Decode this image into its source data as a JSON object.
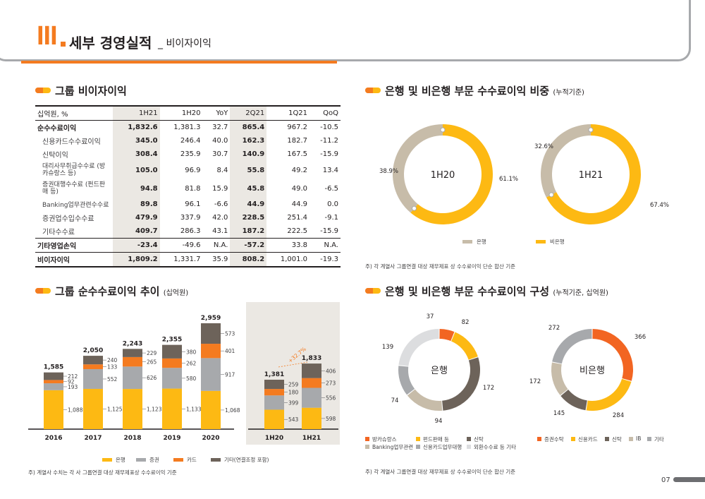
{
  "header": {
    "roman": "III",
    "title": "세부 경영실적",
    "subtitle": "_ 비이자이익"
  },
  "sections": {
    "group_nonint": "그룹 비이자이익",
    "ratio": "은행 및 비은행 부문 수수료이익 비중",
    "ratio_sub": "(누적기준)",
    "trend": "그룹 순수수료이익 추이",
    "trend_sub": "(십억원)",
    "composition": "은행 및 비은행 부문 수수료이익 구성",
    "composition_sub": "(누적기준, 십억원)"
  },
  "table": {
    "headers": [
      "십억원, %",
      "1H21",
      "1H20",
      "YoY",
      "2Q21",
      "1Q21",
      "QoQ"
    ],
    "rows": [
      {
        "label": "순수수료이익",
        "v": [
          "1,832.6",
          "1,381.3",
          "32.7",
          "865.4",
          "967.2",
          "-10.5"
        ]
      },
      {
        "label": "신용카드수수료이익",
        "v": [
          "345.0",
          "246.4",
          "40.0",
          "162.3",
          "182.7",
          "-11.2"
        ]
      },
      {
        "label": "신탁이익",
        "v": [
          "308.4",
          "235.9",
          "30.7",
          "140.9",
          "167.5",
          "-15.9"
        ]
      },
      {
        "label": "대리사무취급수수료 (방카슈랑스 등)",
        "v": [
          "105.0",
          "96.9",
          "8.4",
          "55.8",
          "49.2",
          "13.4"
        ]
      },
      {
        "label": "증권대행수수료 (펀드판매 등)",
        "v": [
          "94.8",
          "81.8",
          "15.9",
          "45.8",
          "49.0",
          "-6.5"
        ]
      },
      {
        "label": "Banking업무관련수수료",
        "v": [
          "89.8",
          "96.1",
          "-6.6",
          "44.9",
          "44.9",
          "0.0"
        ]
      },
      {
        "label": "증권업수입수수료",
        "v": [
          "479.9",
          "337.9",
          "42.0",
          "228.5",
          "251.4",
          "-9.1"
        ]
      },
      {
        "label": "기타수수료",
        "v": [
          "409.7",
          "286.3",
          "43.1",
          "187.2",
          "222.5",
          "-15.9"
        ]
      },
      {
        "label": "기타영업손익",
        "v": [
          "-23.4",
          "-49.6",
          "N.A.",
          "-57.2",
          "33.8",
          "N.A."
        ]
      },
      {
        "label": "비이자이익",
        "v": [
          "1,809.2",
          "1,331.7",
          "35.9",
          "808.2",
          "1,001.0",
          "-19.3"
        ]
      }
    ]
  },
  "ratio_donuts": [
    {
      "center": "1H20",
      "bank": 38.9,
      "nonbank": 61.1,
      "bank_label": "38.9%",
      "nonbank_label": "61.1%"
    },
    {
      "center": "1H21",
      "bank": 32.6,
      "nonbank": 67.4,
      "bank_label": "32.6%",
      "nonbank_label": "67.4%"
    }
  ],
  "ratio_legend": [
    "은행",
    "비은행"
  ],
  "ratio_note": "주) 각 계열사 그룹연결 대상 재무제표 상 수수료이익 단순 합산 기준",
  "chart_data": [
    {
      "type": "bar",
      "stacked": true,
      "categories": [
        "2016",
        "2017",
        "2018",
        "2019",
        "2020"
      ],
      "totals": [
        1585,
        2050,
        2243,
        2355,
        2959
      ],
      "series": [
        {
          "name": "은행",
          "values": [
            1088,
            1125,
            1123,
            1133,
            1068
          ]
        },
        {
          "name": "증권",
          "values": [
            193,
            552,
            626,
            580,
            917
          ]
        },
        {
          "name": "카드",
          "values": [
            92,
            133,
            265,
            262,
            401
          ]
        },
        {
          "name": "기타(연결조정 포함)",
          "values": [
            212,
            240,
            229,
            380,
            573
          ]
        }
      ]
    },
    {
      "type": "bar",
      "stacked": true,
      "categories": [
        "1H20",
        "1H21"
      ],
      "totals": [
        1381,
        1833
      ],
      "growth_label": "+32.7%",
      "series": [
        {
          "name": "은행",
          "values": [
            543,
            598
          ]
        },
        {
          "name": "증권",
          "values": [
            399,
            556
          ]
        },
        {
          "name": "카드",
          "values": [
            180,
            273
          ]
        },
        {
          "name": "기타(연결조정 포함)",
          "values": [
            259,
            406
          ]
        }
      ]
    }
  ],
  "trend_legend": [
    "은행",
    "증권",
    "카드",
    "기타(연결조정 포함)"
  ],
  "trend_note": "주) 계열사 수치는 각 사 그룹연결 대상 재무제표상 수수료이익 기준",
  "comp_donuts": [
    {
      "center": "은행",
      "segments": [
        {
          "name": "방카슈랑스",
          "value": 37,
          "color": "#f26522"
        },
        {
          "name": "펀드판매 등",
          "value": 82,
          "color": "#fdb913"
        },
        {
          "name": "신탁",
          "value": 172,
          "color": "#6d635a"
        },
        {
          "name": "Banking업무관련",
          "value": 94,
          "color": "#c7bca9"
        },
        {
          "name": "신용카드업무대행",
          "value": 74,
          "color": "#a7a9ac"
        },
        {
          "name": "외환수수료 등 기타",
          "value": 139,
          "color": "#dcdddf"
        }
      ]
    },
    {
      "center": "비은행",
      "segments": [
        {
          "name": "증권수탁",
          "value": 366,
          "color": "#f26522"
        },
        {
          "name": "신용카드",
          "value": 284,
          "color": "#fdb913"
        },
        {
          "name": "신탁",
          "value": 145,
          "color": "#6d635a"
        },
        {
          "name": "IB",
          "value": 172,
          "color": "#c7bca9"
        },
        {
          "name": "기타",
          "value": 272,
          "color": "#a7a9ac"
        }
      ]
    }
  ],
  "comp_legend_bank": [
    "방카슈랑스",
    "펀드판매 등",
    "신탁",
    "Banking업무관련",
    "신용카드업무대행",
    "외환수수료 등 기타"
  ],
  "comp_legend_nonbank": [
    "증권수탁",
    "신용카드",
    "신탁",
    "IB",
    "기타"
  ],
  "comp_note": "주) 각 계열사 그룹연결 대상 재무제표 상 수수료이익 단순 합산 기준",
  "page_number": "07",
  "colors": {
    "orange": "#f47b20",
    "yellow": "#fdb913",
    "grey": "#a7a9ac",
    "dark": "#6d635a",
    "beige": "#c7bca9",
    "panel": "#ebe8e3"
  }
}
